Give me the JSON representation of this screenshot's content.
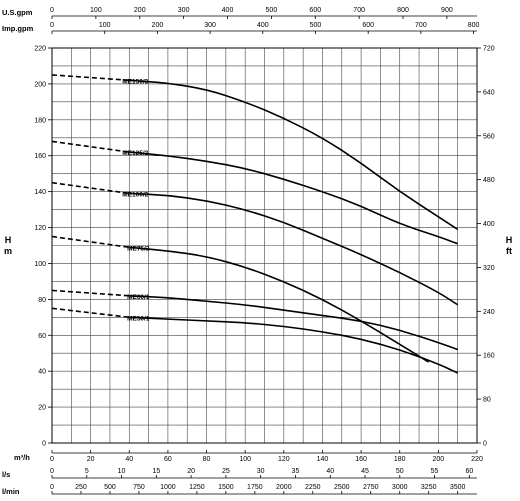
{
  "chart_data": {
    "type": "line",
    "grid": true,
    "left_axis": {
      "unit_top": "H",
      "unit_bottom": "m",
      "range": [
        0,
        220
      ],
      "ticks": [
        "0",
        "20",
        "40",
        "60",
        "80",
        "100",
        "120",
        "140",
        "160",
        "180",
        "200",
        "220"
      ]
    },
    "right_axis": {
      "unit_top": "H",
      "unit_bottom": "ft",
      "range": [
        0,
        720
      ],
      "ticks": [
        "0",
        "80",
        "160",
        "240",
        "320",
        "400",
        "480",
        "560",
        "640",
        "720"
      ]
    },
    "x_axis": {
      "unit": "m³/h",
      "range": [
        0,
        220
      ],
      "ticks": [
        "0",
        "20",
        "40",
        "60",
        "80",
        "100",
        "120",
        "140",
        "160",
        "180",
        "200",
        "220"
      ]
    },
    "top_axes": [
      {
        "unit": "U.S.gpm",
        "range": [
          0,
          968.6
        ],
        "ticks": [
          "0",
          "100",
          "200",
          "300",
          "400",
          "500",
          "600",
          "700",
          "800",
          "900"
        ]
      },
      {
        "unit": "Imp.gpm",
        "range": [
          0,
          806.5
        ],
        "ticks": [
          "0",
          "100",
          "200",
          "300",
          "400",
          "500",
          "600",
          "700",
          "800"
        ]
      }
    ],
    "bottom_axes": [
      {
        "unit": "l/s",
        "range": [
          0,
          61.1
        ],
        "ticks": [
          "0",
          "5",
          "10",
          "15",
          "20",
          "25",
          "30",
          "35",
          "40",
          "45",
          "50",
          "55",
          "60"
        ]
      },
      {
        "unit": "l/min",
        "range": [
          0,
          3666.7
        ],
        "ticks": [
          "0",
          "250",
          "500",
          "750",
          "1000",
          "1250",
          "1500",
          "1750",
          "2000",
          "2250",
          "2500",
          "2750",
          "3000",
          "3250",
          "3500"
        ]
      }
    ],
    "series": [
      {
        "name": "ME150/3",
        "dashed": [
          [
            0,
            205
          ],
          [
            40,
            202
          ]
        ],
        "x": [
          40,
          60,
          80,
          100,
          120,
          140,
          160,
          180,
          200,
          210
        ],
        "y": [
          202,
          200.5,
          197,
          190,
          181,
          170,
          156,
          140,
          126,
          119
        ]
      },
      {
        "name": "ME125/2",
        "dashed": [
          [
            0,
            168
          ],
          [
            40,
            162
          ]
        ],
        "x": [
          40,
          60,
          80,
          100,
          120,
          140,
          160,
          180,
          200,
          210
        ],
        "y": [
          162,
          160,
          157,
          153,
          147,
          140,
          132,
          122,
          115,
          111
        ]
      },
      {
        "name": "ME100/2",
        "dashed": [
          [
            0,
            145
          ],
          [
            40,
            139
          ]
        ],
        "x": [
          40,
          60,
          80,
          100,
          120,
          140,
          160,
          180,
          200,
          210
        ],
        "y": [
          139,
          138,
          135,
          130,
          123,
          114,
          105,
          95,
          84,
          77
        ]
      },
      {
        "name": "ME75/2",
        "dashed": [
          [
            0,
            115
          ],
          [
            40,
            109
          ]
        ],
        "x": [
          40,
          60,
          80,
          100,
          120,
          140,
          160,
          180,
          195
        ],
        "y": [
          109,
          107,
          104,
          98,
          90,
          80,
          68,
          55,
          45
        ]
      },
      {
        "name": "ME60/1",
        "dashed": [
          [
            0,
            85
          ],
          [
            40,
            82
          ]
        ],
        "x": [
          40,
          60,
          80,
          100,
          120,
          140,
          160,
          180,
          200,
          210
        ],
        "y": [
          82,
          81,
          79,
          77,
          74,
          71,
          68,
          63,
          56,
          52
        ]
      },
      {
        "name": "ME50/1",
        "dashed": [
          [
            0,
            75
          ],
          [
            40,
            70
          ]
        ],
        "x": [
          40,
          60,
          80,
          100,
          120,
          140,
          160,
          180,
          200,
          210
        ],
        "y": [
          70,
          69,
          68,
          67,
          65,
          62,
          58,
          52,
          44,
          39
        ]
      }
    ]
  }
}
